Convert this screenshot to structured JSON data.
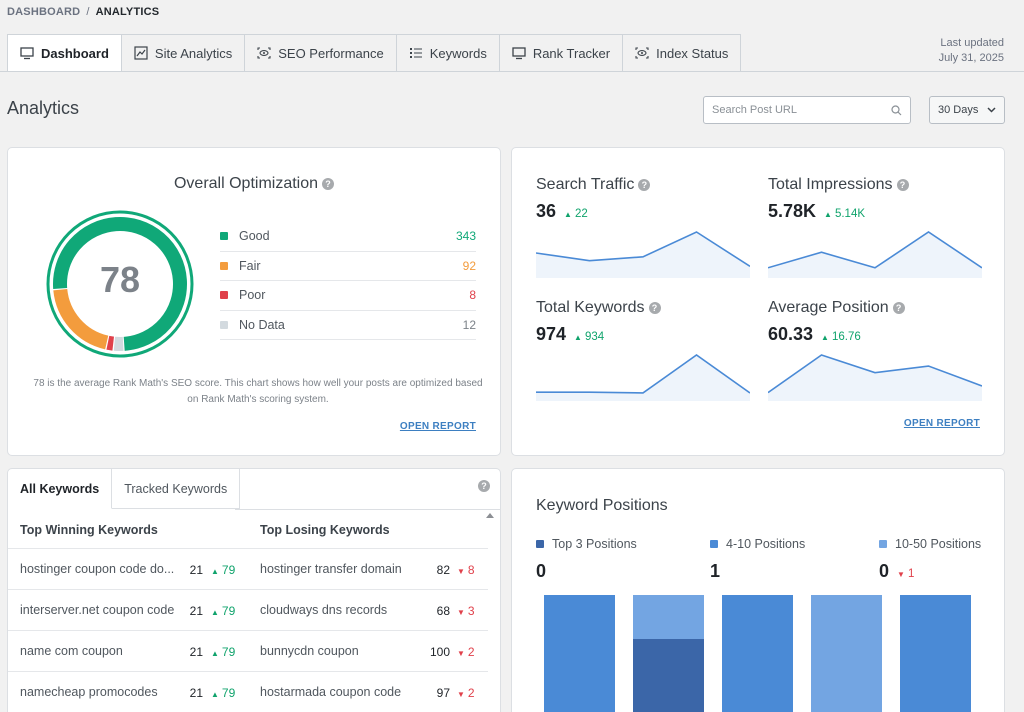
{
  "breadcrumb": {
    "root": "DASHBOARD",
    "sep": "/",
    "current": "ANALYTICS"
  },
  "tabs": [
    {
      "label": "Dashboard",
      "icon": "monitor-icon"
    },
    {
      "label": "Site Analytics",
      "icon": "chart-icon"
    },
    {
      "label": "SEO Performance",
      "icon": "eye-icon"
    },
    {
      "label": "Keywords",
      "icon": "list-icon"
    },
    {
      "label": "Rank Tracker",
      "icon": "monitor-icon"
    },
    {
      "label": "Index Status",
      "icon": "eye-icon"
    }
  ],
  "updated": {
    "label": "Last updated",
    "date": "July 31, 2025"
  },
  "page_title": "Analytics",
  "search": {
    "placeholder": "Search Post URL"
  },
  "range": {
    "selected": "30 Days"
  },
  "optimization": {
    "title": "Overall Optimization",
    "score": "78",
    "legend": [
      {
        "label": "Good",
        "value": "343",
        "color": "#10a878"
      },
      {
        "label": "Fair",
        "value": "92",
        "color": "#f39c3d"
      },
      {
        "label": "Poor",
        "value": "8",
        "color": "#e0414b"
      },
      {
        "label": "No Data",
        "value": "12",
        "color": "#d3dadf"
      }
    ],
    "description": "78 is the average Rank Math's SEO score. This chart shows how well your posts are optimized based on Rank Math's scoring system.",
    "open_report": "OPEN REPORT"
  },
  "metrics": [
    {
      "title": "Search Traffic",
      "value": "36",
      "delta": "22",
      "trend": [
        2.2,
        1.4,
        1.8,
        4.4,
        0.8
      ]
    },
    {
      "title": "Total Impressions",
      "value": "5.78K",
      "delta": "5.14K",
      "trend": [
        0.8,
        2.8,
        0.8,
        5.4,
        0.8
      ]
    },
    {
      "title": "Total Keywords",
      "value": "974",
      "delta": "934",
      "trend": [
        0.6,
        0.6,
        0.5,
        5.2,
        0.5
      ]
    },
    {
      "title": "Average Position",
      "value": "60.33",
      "delta": "16.76",
      "trend": [
        0.4,
        3.8,
        2.2,
        2.8,
        1.0
      ]
    }
  ],
  "metrics_open_report": "OPEN REPORT",
  "keywords": {
    "tabs": [
      "All Keywords",
      "Tracked Keywords"
    ],
    "winning_header": "Top Winning Keywords",
    "losing_header": "Top Losing Keywords",
    "rows": [
      {
        "win": "hostinger coupon code do...",
        "win_pos": "21",
        "win_delta": "79",
        "lose": "hostinger transfer domain",
        "lose_pos": "82",
        "lose_delta": "8"
      },
      {
        "win": "interserver.net coupon code",
        "win_pos": "21",
        "win_delta": "79",
        "lose": "cloudways dns records",
        "lose_pos": "68",
        "lose_delta": "3"
      },
      {
        "win": "name com coupon",
        "win_pos": "21",
        "win_delta": "79",
        "lose": "bunnycdn coupon",
        "lose_pos": "100",
        "lose_delta": "2"
      },
      {
        "win": "namecheap promocodes",
        "win_pos": "21",
        "win_delta": "79",
        "lose": "hostarmada coupon code",
        "lose_pos": "97",
        "lose_delta": "2"
      }
    ]
  },
  "positions": {
    "title": "Keyword Positions",
    "legend": [
      {
        "label": "Top 3 Positions",
        "value": "0",
        "delta": "",
        "color": "#3b66a8"
      },
      {
        "label": "4-10 Positions",
        "value": "1",
        "delta": "",
        "color": "#4a8ad6"
      },
      {
        "label": "10-50 Positions",
        "value": "0",
        "delta": "1",
        "color": "#73a5e2"
      }
    ]
  }
}
